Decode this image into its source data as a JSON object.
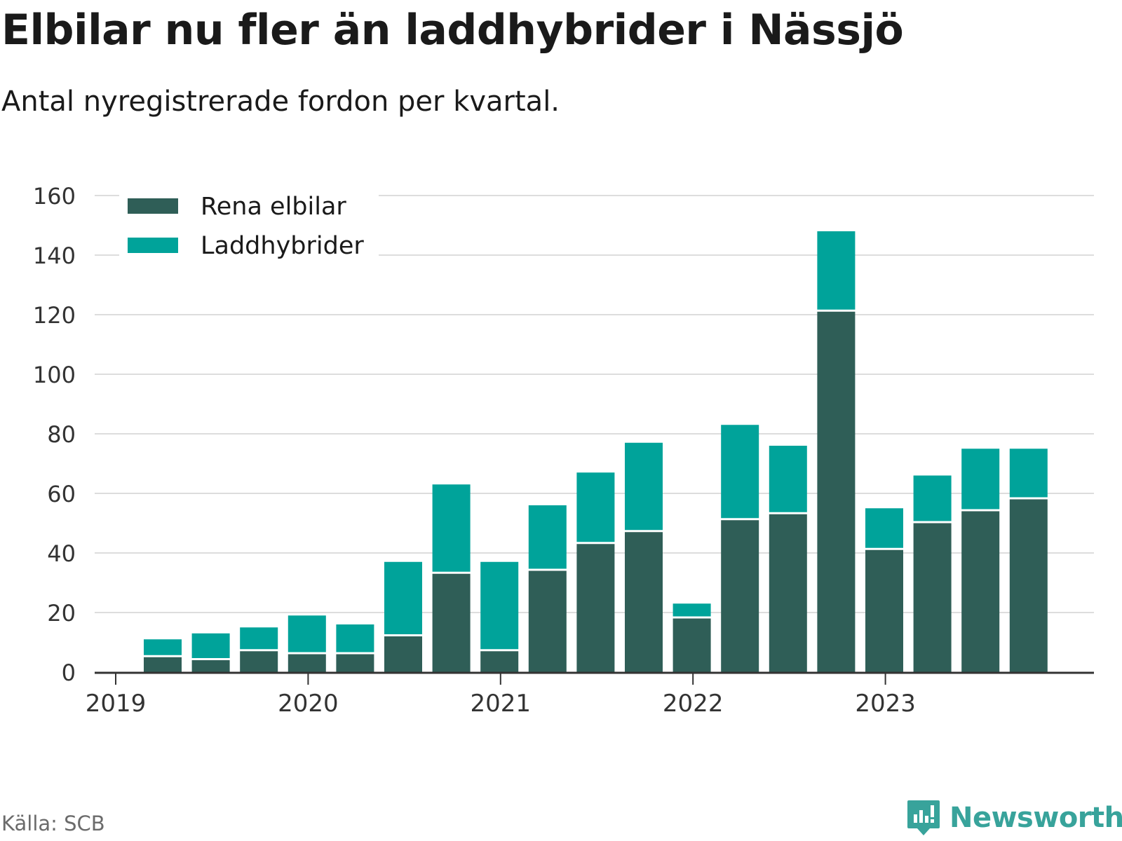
{
  "title": "Elbilar nu fler än laddhybrider i Nässjö",
  "subtitle": "Antal nyregistrerade fordon per kvartal.",
  "source": "Källa: SCB",
  "brand": "Newsworthy",
  "colors": {
    "elbilar": "#2f5e57",
    "laddhybrider": "#00a39a",
    "grid": "#dddddd",
    "axis": "#333333",
    "text": "#333333",
    "brand": "#38a39b"
  },
  "chart_data": {
    "type": "bar",
    "stacked": true,
    "title": "Elbilar nu fler än laddhybrider i Nässjö",
    "subtitle": "Antal nyregistrerade fordon per kvartal.",
    "xlabel": "",
    "ylabel": "",
    "ylim": [
      0,
      160
    ],
    "yticks": [
      0,
      20,
      40,
      60,
      80,
      100,
      120,
      140,
      160
    ],
    "year_labels": [
      "2019",
      "2020",
      "2021",
      "2022",
      "2023"
    ],
    "legend_position": "top-left",
    "grid": true,
    "categories": [
      "2019 Q1",
      "2019 Q2",
      "2019 Q3",
      "2019 Q4",
      "2020 Q1",
      "2020 Q2",
      "2020 Q3",
      "2020 Q4",
      "2021 Q1",
      "2021 Q2",
      "2021 Q3",
      "2021 Q4",
      "2022 Q1",
      "2022 Q2",
      "2022 Q3",
      "2022 Q4",
      "2023 Q1",
      "2023 Q2",
      "2023 Q3",
      "2023 Q4"
    ],
    "series": [
      {
        "name": "Rena elbilar",
        "color": "#2f5e57",
        "values": [
          5,
          4,
          7,
          6,
          6,
          12,
          33,
          7,
          34,
          43,
          47,
          18,
          51,
          53,
          121,
          41,
          50,
          54,
          58,
          null
        ]
      },
      {
        "name": "Laddhybrider",
        "color": "#00a39a",
        "values": [
          6,
          9,
          8,
          13,
          10,
          25,
          30,
          30,
          22,
          24,
          30,
          5,
          32,
          23,
          27,
          14,
          16,
          21,
          17,
          null
        ]
      }
    ]
  }
}
